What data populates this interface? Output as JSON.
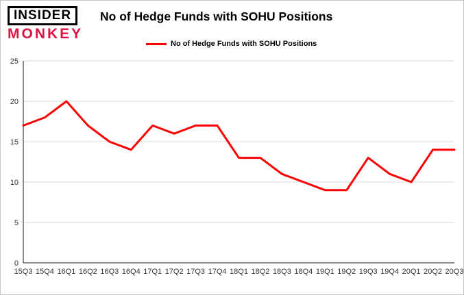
{
  "logo": {
    "line1": "INSIDER",
    "line2": "MONKEY",
    "monkey_color": "#dd1343"
  },
  "header": {
    "title": "No of Hedge Funds with SOHU Positions"
  },
  "legend": {
    "label": "No of Hedge Funds with SOHU Positions",
    "line_color": "#ff0000"
  },
  "chart_data": {
    "type": "line",
    "title": "No of Hedge Funds with SOHU Positions",
    "categories": [
      "15Q3",
      "15Q4",
      "16Q1",
      "16Q2",
      "16Q3",
      "16Q4",
      "17Q1",
      "17Q2",
      "17Q3",
      "17Q4",
      "18Q1",
      "18Q2",
      "18Q3",
      "18Q4",
      "19Q1",
      "19Q2",
      "19Q3",
      "19Q4",
      "20Q1",
      "20Q2",
      "20Q3"
    ],
    "series": [
      {
        "name": "No of Hedge Funds with SOHU Positions",
        "color": "#ff0000",
        "values": [
          17,
          18,
          20,
          17,
          15,
          14,
          17,
          16,
          17,
          17,
          13,
          13,
          11,
          10,
          9,
          9,
          13,
          11,
          10,
          14,
          14
        ]
      }
    ],
    "ylim": [
      0,
      25
    ],
    "yticks": [
      0,
      5,
      10,
      15,
      20,
      25
    ],
    "grid": true,
    "legend_position": "top",
    "xlabel": "",
    "ylabel": ""
  }
}
